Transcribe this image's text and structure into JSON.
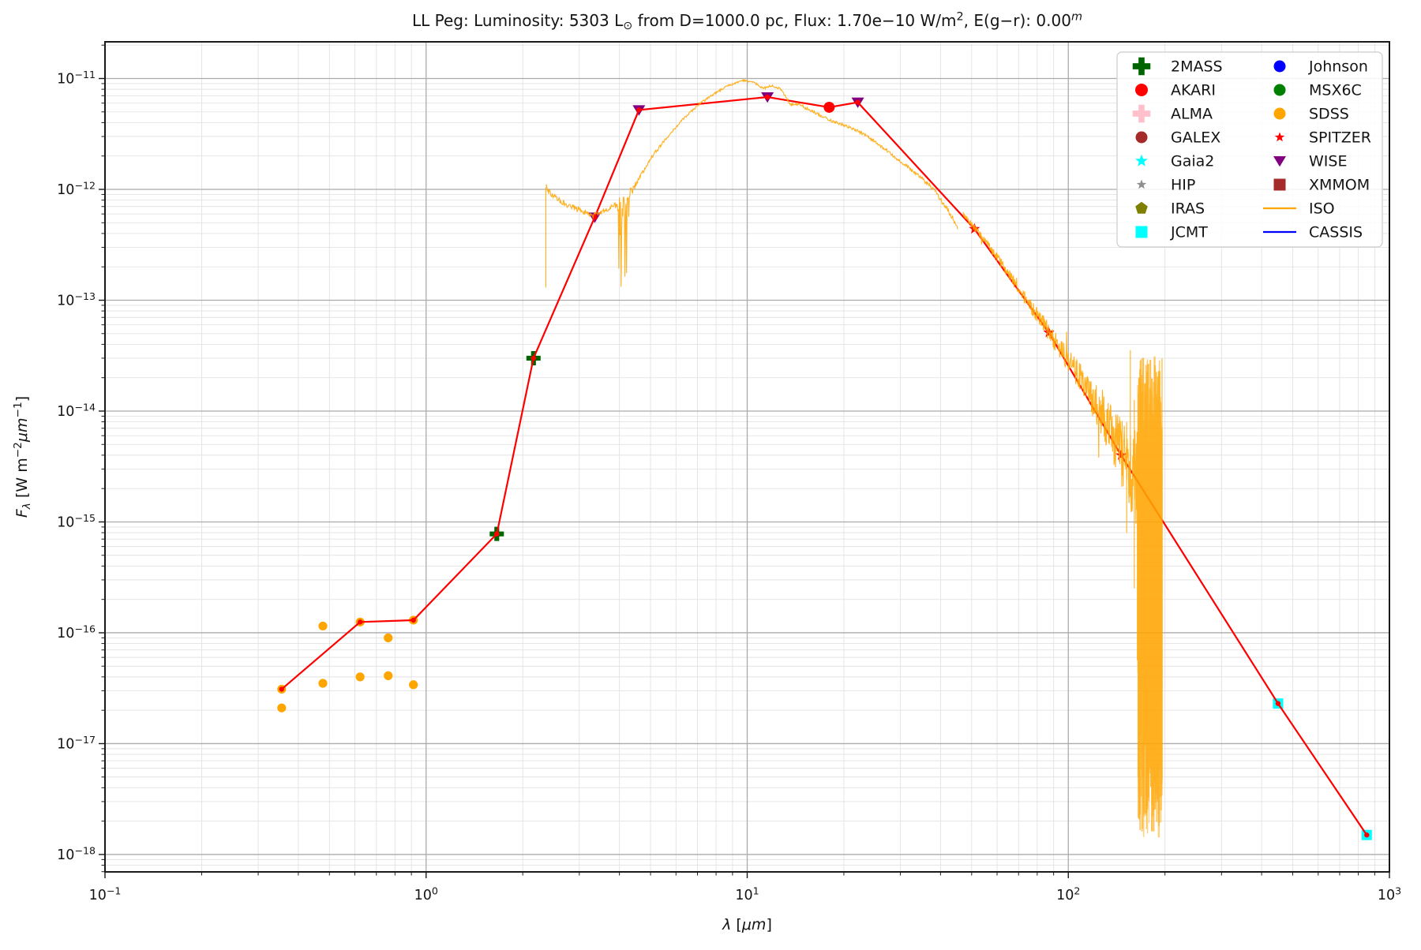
{
  "figure": {
    "title_parts": [
      {
        "t": "LL Peg:  Luminosity: 5303 L"
      },
      {
        "t": "⊙",
        "sub": true
      },
      {
        "t": " from D=1000.0 pc, Flux: 1.70e-10 W/m"
      },
      {
        "t": "2",
        "sup": true
      },
      {
        "t": ", E(g-r): 0.00"
      },
      {
        "t": "m",
        "sup": true,
        "italic": true
      }
    ],
    "xlabel_parts": [
      {
        "t": "λ",
        "italic": true
      },
      {
        "t": " ["
      },
      {
        "t": "μm",
        "italic": true
      },
      {
        "t": "]"
      }
    ],
    "ylabel_parts": [
      {
        "t": "F",
        "italic": true
      },
      {
        "t": "λ",
        "sub": true,
        "italic": true
      },
      {
        "t": " [W m"
      },
      {
        "t": "-2",
        "sup": true
      },
      {
        "t": "μm",
        "italic": true
      },
      {
        "t": "-1",
        "sup": true
      },
      {
        "t": "]"
      }
    ]
  },
  "chart_data": {
    "type": "scatter",
    "title": "LL Peg:  Luminosity: 5303 Lsun from D=1000.0 pc, Flux: 1.70e-10 W/m2, E(g-r): 0.00m",
    "xlabel": "lambda [um]",
    "ylabel": "F_lambda [W m-2 um-1]",
    "xscale": "log",
    "yscale": "log",
    "xlim": [
      0.1,
      1000
    ],
    "ylim_exp": [
      -18.157,
      -10.669
    ],
    "x_tick_exponents": [
      -1,
      0,
      1,
      2,
      3
    ],
    "y_tick_exponents": [
      -11,
      -12,
      -13,
      -14,
      -15,
      -16,
      -17,
      -18
    ],
    "grid": "major+minor",
    "legend_position": "upper right",
    "series": [
      {
        "name": "SDSS",
        "marker": "circle",
        "color": "#ffa500",
        "size": 5.6,
        "points": [
          [
            0.355,
            3.1e-17
          ],
          [
            0.355,
            2.1e-17
          ],
          [
            0.477,
            1.15e-16
          ],
          [
            0.477,
            3.5e-17
          ],
          [
            0.623,
            1.25e-16
          ],
          [
            0.623,
            4e-17
          ],
          [
            0.762,
            9e-17
          ],
          [
            0.762,
            4.1e-17
          ],
          [
            0.913,
            1.3e-16
          ],
          [
            0.913,
            3.4e-17
          ]
        ]
      },
      {
        "name": "2MASS",
        "marker": "plus",
        "color": "#006400",
        "size": 7.2,
        "points": [
          [
            1.66,
            7.8e-16
          ],
          [
            2.16,
            3e-14
          ]
        ]
      },
      {
        "name": "WISE",
        "marker": "triangle-down",
        "color": "#800080",
        "size": 8,
        "points": [
          [
            3.35,
            5.6e-13
          ],
          [
            4.6,
            5.2e-12
          ],
          [
            11.56,
            6.8e-12
          ],
          [
            22.1,
            6.1e-12
          ]
        ]
      },
      {
        "name": "AKARI",
        "marker": "circle",
        "color": "#ff0000",
        "size": 7,
        "points": [
          [
            18.0,
            5.5e-12
          ]
        ]
      },
      {
        "name": "SPITZER",
        "marker": "star",
        "color": "#ff0000",
        "size": 6,
        "points": [
          [
            51,
            4.4e-13
          ],
          [
            87,
            5.1e-14
          ],
          [
            146,
            4e-15
          ]
        ]
      },
      {
        "name": "JCMT",
        "marker": "square",
        "color": "#00ffff",
        "size": 6.5,
        "points": [
          [
            450,
            2.3e-17
          ],
          [
            850,
            1.5e-18
          ]
        ]
      }
    ],
    "sed_line": {
      "color": "#ff0000",
      "vertex_marker": "dot",
      "points": [
        [
          0.355,
          3.1e-17
        ],
        [
          0.623,
          1.25e-16
        ],
        [
          0.913,
          1.3e-16
        ],
        [
          1.66,
          7.8e-16
        ],
        [
          2.16,
          3e-14
        ],
        [
          3.35,
          5.6e-13
        ],
        [
          4.6,
          5.2e-12
        ],
        [
          11.56,
          6.8e-12
        ],
        [
          18.0,
          5.5e-12
        ],
        [
          22.1,
          6.1e-12
        ],
        [
          51,
          4.4e-13
        ],
        [
          87,
          5.1e-14
        ],
        [
          146,
          4e-15
        ],
        [
          450,
          2.3e-17
        ],
        [
          850,
          1.5e-18
        ]
      ]
    },
    "iso_spectrum": {
      "color": "#ffa500",
      "start_spike": {
        "lambda": 2.36,
        "from": 1.3e-13,
        "to": 1.05e-12
      },
      "segment_sws": {
        "backbone": [
          [
            2.36,
            1.05e-12
          ],
          [
            2.45,
            9e-13
          ],
          [
            2.6,
            8e-13
          ],
          [
            2.8,
            7.1e-13
          ],
          [
            3.0,
            6.5e-13
          ],
          [
            3.3,
            5.8e-13
          ],
          [
            3.6,
            6.4e-13
          ],
          [
            3.9,
            7.3e-13
          ],
          [
            4.1,
            7.5e-13
          ],
          [
            4.4,
            1e-12
          ],
          [
            5.0,
            1.9e-12
          ],
          [
            5.6,
            2.9e-12
          ],
          [
            6.3,
            4.3e-12
          ],
          [
            7.1,
            5.9e-12
          ],
          [
            8.0,
            7.5e-12
          ],
          [
            8.8,
            8.7e-12
          ],
          [
            9.7,
            9.6e-12
          ],
          [
            10.4,
            9.3e-12
          ],
          [
            11.2,
            8.2e-12
          ],
          [
            12.0,
            8.6e-12
          ],
          [
            12.8,
            7.9e-12
          ],
          [
            13.6,
            5.8e-12
          ],
          [
            14.3,
            5.9e-12
          ],
          [
            15.5,
            5.3e-12
          ],
          [
            17.0,
            4.6e-12
          ],
          [
            18.5,
            4.1e-12
          ],
          [
            20.0,
            3.8e-12
          ],
          [
            22.0,
            3.4e-12
          ],
          [
            25.0,
            2.7e-12
          ],
          [
            28.0,
            2.1e-12
          ],
          [
            31.5,
            1.6e-12
          ],
          [
            35.0,
            1.25e-12
          ],
          [
            38.0,
            1e-12
          ],
          [
            41.0,
            7.3e-13
          ],
          [
            43.5,
            5.6e-13
          ],
          [
            45.2,
            4.3e-13
          ]
        ],
        "noise_amp_dec": [
          [
            2.36,
            0.03
          ],
          [
            3.0,
            0.025
          ],
          [
            3.8,
            0.02
          ],
          [
            4.0,
            0.09
          ],
          [
            4.3,
            0.05
          ],
          [
            4.6,
            0.02
          ],
          [
            6,
            0.012
          ],
          [
            10,
            0.009
          ],
          [
            14,
            0.014
          ],
          [
            20,
            0.012
          ],
          [
            30,
            0.015
          ],
          [
            40,
            0.02
          ],
          [
            45,
            0.03
          ]
        ],
        "dropout_window": [
          3.98,
          4.28
        ],
        "dropout_depth_dec": [
          0.15,
          0.8
        ]
      },
      "segment_lws": {
        "backbone": [
          [
            47,
            6e-13
          ],
          [
            51,
            4.5e-13
          ],
          [
            57,
            3e-13
          ],
          [
            65,
            1.75e-13
          ],
          [
            75,
            9.5e-14
          ],
          [
            87,
            5.2e-14
          ],
          [
            100,
            2.9e-14
          ],
          [
            115,
            1.55e-14
          ],
          [
            130,
            8.5e-15
          ],
          [
            146,
            4.3e-15
          ],
          [
            158,
            2.8e-15
          ],
          [
            165,
            2.2e-15
          ]
        ],
        "noise_amp_dec": [
          [
            47,
            0.02
          ],
          [
            60,
            0.04
          ],
          [
            75,
            0.06
          ],
          [
            90,
            0.09
          ],
          [
            105,
            0.12
          ],
          [
            120,
            0.17
          ],
          [
            135,
            0.24
          ],
          [
            150,
            0.33
          ],
          [
            165,
            0.5
          ]
        ]
      },
      "noise_blob": {
        "lambda_range": [
          163,
          196
        ],
        "top_exp_range": [
          -13.5,
          -14.4
        ],
        "bottom_exp_range": [
          -15.6,
          -17.85
        ],
        "strokes": 175
      },
      "extra_spikes": [
        [
          152,
          -14.1,
          -15.1
        ],
        [
          156,
          -13.45,
          -14.6
        ],
        [
          160.5,
          -13.9,
          -15.6
        ]
      ]
    }
  },
  "legend": {
    "entries": [
      {
        "label": "2MASS",
        "marker": "plus",
        "color": "#006400"
      },
      {
        "label": "AKARI",
        "marker": "circle",
        "color": "#ff0000",
        "size": 8
      },
      {
        "label": "ALMA",
        "marker": "plus",
        "color": "#ffc0cb"
      },
      {
        "label": "GALEX",
        "marker": "circle",
        "color": "#a52a2a",
        "size": 7.5
      },
      {
        "label": "Gaia2",
        "marker": "star",
        "color": "#00ffff",
        "size": 7
      },
      {
        "label": "HIP",
        "marker": "star",
        "color": "#8f8f8f",
        "size": 5.5
      },
      {
        "label": "IRAS",
        "marker": "pentagon",
        "color": "#808000",
        "size": 7.5
      },
      {
        "label": "JCMT",
        "marker": "square",
        "color": "#00ffff",
        "size": 7.5
      },
      {
        "label": "Johnson",
        "marker": "circle",
        "color": "#0000ff",
        "size": 7.5
      },
      {
        "label": "MSX6C",
        "marker": "circle",
        "color": "#008000",
        "size": 7.5
      },
      {
        "label": "SDSS",
        "marker": "circle",
        "color": "#ffa500",
        "size": 7.5
      },
      {
        "label": "SPITZER",
        "marker": "star",
        "color": "#ff0000",
        "size": 5.5
      },
      {
        "label": "WISE",
        "marker": "triangle-down",
        "color": "#800080",
        "size": 8
      },
      {
        "label": "XMMOM",
        "marker": "square",
        "color": "#a52a2a",
        "size": 7.5
      },
      {
        "label": "ISO",
        "marker": "line",
        "color": "#ffa500"
      },
      {
        "label": "CASSIS",
        "marker": "line",
        "color": "#0000ff"
      }
    ]
  },
  "colors": {
    "sed_line": "#ff0000",
    "iso": "#ffa500",
    "grid_major": "#ababab",
    "grid_minor": "#e2e2e2",
    "spine": "#1a1a1a",
    "legend_border": "#cccccc"
  }
}
